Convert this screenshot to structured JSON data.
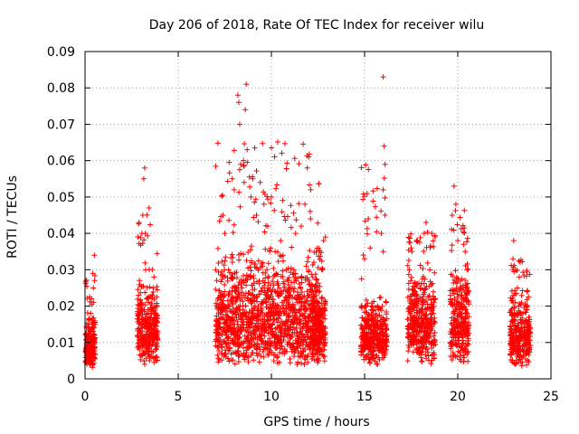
{
  "chart_data": {
    "type": "scatter",
    "title": "Day 206 of 2018, Rate Of TEC Index for receiver wilu",
    "xlabel": "GPS time / hours",
    "ylabel": "ROTI / TECUs",
    "xlim": [
      0,
      25
    ],
    "ylim": [
      0,
      0.09
    ],
    "xticks": [
      0,
      5,
      10,
      15,
      20,
      25
    ],
    "yticks": [
      0,
      0.01,
      0.02,
      0.03,
      0.04,
      0.05,
      0.06,
      0.07,
      0.08,
      0.09
    ],
    "ytick_labels": [
      "0",
      "0.01",
      "0.02",
      "0.03",
      "0.04",
      "0.05",
      "0.06",
      "0.07",
      "0.08",
      "0.09"
    ],
    "grid": true,
    "marker": "+",
    "color": "#ff0000",
    "clusters": [
      {
        "x_range": [
          0.0,
          0.55
        ],
        "y_range": [
          0.003,
          0.02
        ],
        "max": 0.035
      },
      {
        "x_range": [
          2.8,
          3.9
        ],
        "y_range": [
          0.004,
          0.03
        ],
        "max": 0.059
      },
      {
        "x_range": [
          7.0,
          12.6
        ],
        "y_range": [
          0.003,
          0.04
        ],
        "max": 0.082
      },
      {
        "x_range": [
          12.2,
          12.9
        ],
        "y_range": [
          0.004,
          0.03
        ],
        "max": 0.04
      },
      {
        "x_range": [
          14.8,
          16.2
        ],
        "y_range": [
          0.004,
          0.025
        ],
        "max": 0.084
      },
      {
        "x_range": [
          17.3,
          18.8
        ],
        "y_range": [
          0.004,
          0.035
        ],
        "max": 0.044
      },
      {
        "x_range": [
          19.6,
          20.6
        ],
        "y_range": [
          0.004,
          0.035
        ],
        "max": 0.054
      },
      {
        "x_range": [
          22.8,
          23.9
        ],
        "y_range": [
          0.003,
          0.028
        ],
        "max": 0.038
      }
    ],
    "points": [
      [
        0.05,
        0.008
      ],
      [
        0.1,
        0.012
      ],
      [
        0.15,
        0.006
      ],
      [
        0.2,
        0.015
      ],
      [
        0.25,
        0.01
      ],
      [
        0.3,
        0.018
      ],
      [
        0.35,
        0.022
      ],
      [
        0.4,
        0.009
      ],
      [
        0.45,
        0.025
      ],
      [
        0.5,
        0.034
      ],
      [
        0.42,
        0.029
      ],
      [
        0.1,
        0.004
      ],
      [
        0.3,
        0.005
      ],
      [
        2.9,
        0.01
      ],
      [
        3.0,
        0.02
      ],
      [
        3.05,
        0.04
      ],
      [
        3.1,
        0.045
      ],
      [
        3.15,
        0.055
      ],
      [
        3.2,
        0.058
      ],
      [
        3.25,
        0.03
      ],
      [
        3.3,
        0.015
      ],
      [
        3.4,
        0.008
      ],
      [
        3.5,
        0.012
      ],
      [
        3.6,
        0.022
      ],
      [
        3.7,
        0.028
      ],
      [
        3.8,
        0.018
      ],
      [
        3.2,
        0.004
      ],
      [
        3.5,
        0.006
      ],
      [
        7.2,
        0.01
      ],
      [
        7.4,
        0.045
      ],
      [
        7.5,
        0.04
      ],
      [
        7.7,
        0.03
      ],
      [
        7.9,
        0.055
      ],
      [
        8.0,
        0.052
      ],
      [
        8.2,
        0.078
      ],
      [
        8.25,
        0.076
      ],
      [
        8.3,
        0.07
      ],
      [
        8.5,
        0.06
      ],
      [
        8.6,
        0.074
      ],
      [
        8.65,
        0.081
      ],
      [
        8.7,
        0.063
      ],
      [
        8.9,
        0.05
      ],
      [
        9.0,
        0.055
      ],
      [
        9.2,
        0.045
      ],
      [
        9.4,
        0.054
      ],
      [
        9.6,
        0.048
      ],
      [
        9.8,
        0.042
      ],
      [
        10.0,
        0.05
      ],
      [
        10.2,
        0.035
      ],
      [
        10.5,
        0.038
      ],
      [
        10.8,
        0.03
      ],
      [
        11.0,
        0.025
      ],
      [
        11.3,
        0.04
      ],
      [
        11.6,
        0.042
      ],
      [
        11.8,
        0.048
      ],
      [
        12.0,
        0.061
      ],
      [
        12.1,
        0.044
      ],
      [
        12.3,
        0.02
      ],
      [
        12.5,
        0.015
      ],
      [
        12.7,
        0.03
      ],
      [
        12.8,
        0.038
      ],
      [
        12.9,
        0.039
      ],
      [
        15.0,
        0.033
      ],
      [
        15.1,
        0.02
      ],
      [
        15.2,
        0.044
      ],
      [
        15.3,
        0.036
      ],
      [
        15.5,
        0.015
      ],
      [
        15.7,
        0.02
      ],
      [
        15.9,
        0.04
      ],
      [
        16.0,
        0.083
      ],
      [
        16.05,
        0.064
      ],
      [
        16.1,
        0.059
      ],
      [
        16.0,
        0.052
      ],
      [
        16.1,
        0.045
      ],
      [
        16.0,
        0.035
      ],
      [
        15.8,
        0.008
      ],
      [
        17.4,
        0.03
      ],
      [
        17.5,
        0.036
      ],
      [
        17.6,
        0.02
      ],
      [
        17.8,
        0.012
      ],
      [
        18.0,
        0.025
      ],
      [
        18.2,
        0.04
      ],
      [
        18.3,
        0.043
      ],
      [
        18.5,
        0.03
      ],
      [
        18.7,
        0.018
      ],
      [
        19.7,
        0.045
      ],
      [
        19.8,
        0.053
      ],
      [
        19.9,
        0.048
      ],
      [
        20.0,
        0.038
      ],
      [
        20.2,
        0.02
      ],
      [
        20.4,
        0.035
      ],
      [
        20.5,
        0.03
      ],
      [
        23.0,
        0.038
      ],
      [
        23.1,
        0.03
      ],
      [
        23.2,
        0.025
      ],
      [
        23.3,
        0.028
      ],
      [
        23.5,
        0.018
      ],
      [
        23.7,
        0.012
      ],
      [
        23.8,
        0.01
      ],
      [
        23.1,
        0.004
      ]
    ]
  }
}
